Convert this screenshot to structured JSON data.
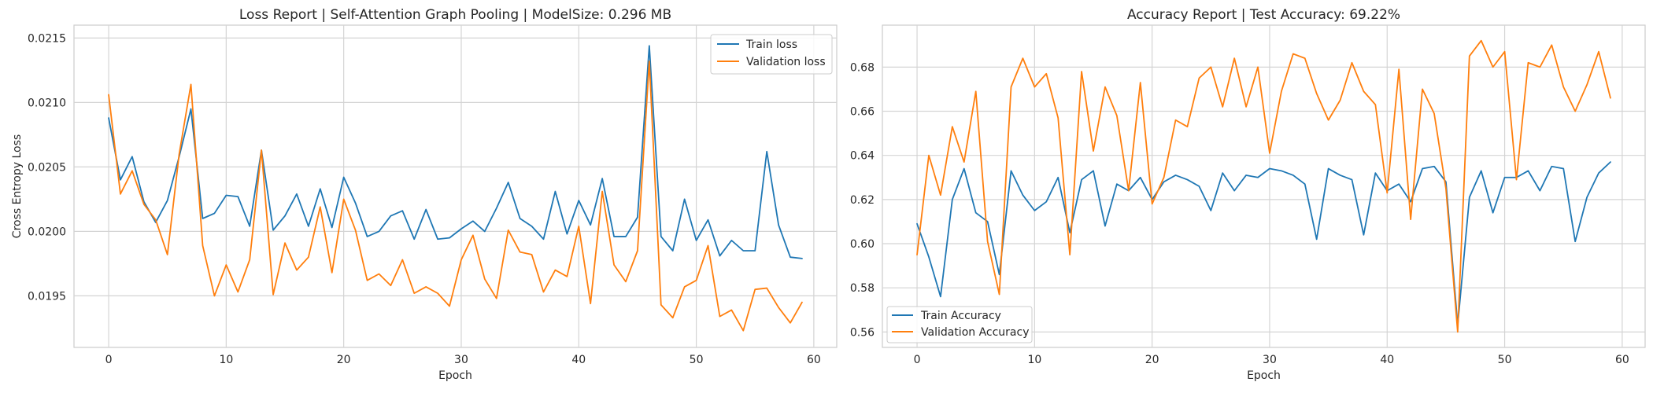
{
  "chart_data": [
    {
      "type": "line",
      "title": "Loss Report | Self-Attention Graph Pooling | ModelSize: 0.296 MB",
      "xlabel": "Epoch",
      "ylabel": "Cross Entropy Loss",
      "xlim": [
        -2.95,
        61.95
      ],
      "ylim": [
        0.0191,
        0.0216
      ],
      "xticks": [
        0,
        10,
        20,
        30,
        40,
        50,
        60
      ],
      "yticks": [
        0.0195,
        0.02,
        0.0205,
        0.021,
        0.0215
      ],
      "ytick_labels": [
        "0.0195",
        "0.0200",
        "0.0205",
        "0.0210",
        "0.0215"
      ],
      "grid": true,
      "legend_position": "upper-right",
      "x": [
        0,
        1,
        2,
        3,
        4,
        5,
        6,
        7,
        8,
        9,
        10,
        11,
        12,
        13,
        14,
        15,
        16,
        17,
        18,
        19,
        20,
        21,
        22,
        23,
        24,
        25,
        26,
        27,
        28,
        29,
        30,
        31,
        32,
        33,
        34,
        35,
        36,
        37,
        38,
        39,
        40,
        41,
        42,
        43,
        44,
        45,
        46,
        47,
        48,
        49,
        50,
        51,
        52,
        53,
        54,
        55,
        56,
        57,
        58,
        59
      ],
      "series": [
        {
          "name": "Train loss",
          "color": "#1f77b4",
          "values": [
            0.02088,
            0.0204,
            0.02058,
            0.02023,
            0.02007,
            0.02024,
            0.02058,
            0.02095,
            0.0201,
            0.02014,
            0.02028,
            0.02027,
            0.02004,
            0.02063,
            0.02001,
            0.02012,
            0.02029,
            0.02004,
            0.02033,
            0.02003,
            0.02042,
            0.02022,
            0.01996,
            0.02,
            0.02012,
            0.02016,
            0.01994,
            0.02017,
            0.01994,
            0.01995,
            0.02002,
            0.02008,
            0.02,
            0.02018,
            0.02038,
            0.0201,
            0.02004,
            0.01994,
            0.02031,
            0.01998,
            0.02024,
            0.02005,
            0.02041,
            0.01996,
            0.01996,
            0.02011,
            0.02144,
            0.01996,
            0.01985,
            0.02025,
            0.01993,
            0.02009,
            0.01981,
            0.01993,
            0.01985,
            0.01985,
            0.02062,
            0.02005,
            0.0198,
            0.01979
          ]
        },
        {
          "name": "Validation loss",
          "color": "#ff7f0e",
          "values": [
            0.02106,
            0.02029,
            0.02047,
            0.02021,
            0.02009,
            0.01982,
            0.0206,
            0.02114,
            0.01989,
            0.0195,
            0.01974,
            0.01953,
            0.01978,
            0.02063,
            0.01951,
            0.01991,
            0.0197,
            0.0198,
            0.02019,
            0.01968,
            0.02025,
            0.02001,
            0.01962,
            0.01967,
            0.01958,
            0.01978,
            0.01952,
            0.01957,
            0.01952,
            0.01942,
            0.01978,
            0.01997,
            0.01963,
            0.01948,
            0.02001,
            0.01984,
            0.01982,
            0.01953,
            0.0197,
            0.01965,
            0.02004,
            0.01944,
            0.02031,
            0.01974,
            0.01961,
            0.01985,
            0.02132,
            0.01943,
            0.01933,
            0.01957,
            0.01962,
            0.01989,
            0.01934,
            0.01939,
            0.01923,
            0.01955,
            0.01956,
            0.01941,
            0.01929,
            0.01945
          ]
        }
      ]
    },
    {
      "type": "line",
      "title": "Accuracy Report | Test Accuracy: 69.22%",
      "xlabel": "Epoch",
      "ylabel": "",
      "xlim": [
        -2.95,
        61.95
      ],
      "ylim": [
        0.553,
        0.699
      ],
      "xticks": [
        0,
        10,
        20,
        30,
        40,
        50,
        60
      ],
      "yticks": [
        0.56,
        0.58,
        0.6,
        0.62,
        0.64,
        0.66,
        0.68
      ],
      "ytick_labels": [
        "0.56",
        "0.58",
        "0.60",
        "0.62",
        "0.64",
        "0.66",
        "0.68"
      ],
      "grid": true,
      "legend_position": "lower-left",
      "x": [
        0,
        1,
        2,
        3,
        4,
        5,
        6,
        7,
        8,
        9,
        10,
        11,
        12,
        13,
        14,
        15,
        16,
        17,
        18,
        19,
        20,
        21,
        22,
        23,
        24,
        25,
        26,
        27,
        28,
        29,
        30,
        31,
        32,
        33,
        34,
        35,
        36,
        37,
        38,
        39,
        40,
        41,
        42,
        43,
        44,
        45,
        46,
        47,
        48,
        49,
        50,
        51,
        52,
        53,
        54,
        55,
        56,
        57,
        58,
        59
      ],
      "series": [
        {
          "name": "Train Accuracy",
          "color": "#1f77b4",
          "values": [
            0.609,
            0.594,
            0.576,
            0.62,
            0.634,
            0.614,
            0.61,
            0.586,
            0.633,
            0.622,
            0.615,
            0.619,
            0.63,
            0.605,
            0.629,
            0.633,
            0.608,
            0.627,
            0.624,
            0.63,
            0.62,
            0.628,
            0.631,
            0.629,
            0.626,
            0.615,
            0.632,
            0.624,
            0.631,
            0.63,
            0.634,
            0.633,
            0.631,
            0.627,
            0.602,
            0.634,
            0.631,
            0.629,
            0.604,
            0.632,
            0.624,
            0.627,
            0.619,
            0.634,
            0.635,
            0.628,
            0.563,
            0.621,
            0.633,
            0.614,
            0.63,
            0.63,
            0.633,
            0.624,
            0.635,
            0.634,
            0.601,
            0.621,
            0.632,
            0.637
          ]
        },
        {
          "name": "Validation Accuracy",
          "color": "#ff7f0e",
          "values": [
            0.595,
            0.64,
            0.622,
            0.653,
            0.637,
            0.669,
            0.601,
            0.577,
            0.671,
            0.684,
            0.671,
            0.677,
            0.657,
            0.595,
            0.678,
            0.642,
            0.671,
            0.658,
            0.624,
            0.673,
            0.618,
            0.63,
            0.656,
            0.653,
            0.675,
            0.68,
            0.662,
            0.684,
            0.662,
            0.68,
            0.641,
            0.669,
            0.686,
            0.684,
            0.668,
            0.656,
            0.665,
            0.682,
            0.669,
            0.663,
            0.623,
            0.679,
            0.611,
            0.67,
            0.659,
            0.625,
            0.56,
            0.685,
            0.692,
            0.68,
            0.687,
            0.629,
            0.682,
            0.68,
            0.69,
            0.671,
            0.66,
            0.672,
            0.687,
            0.666
          ]
        }
      ]
    }
  ]
}
